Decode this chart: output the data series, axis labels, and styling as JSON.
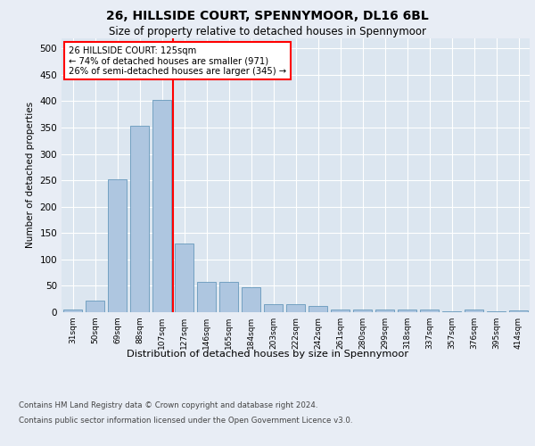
{
  "title1": "26, HILLSIDE COURT, SPENNYMOOR, DL16 6BL",
  "title2": "Size of property relative to detached houses in Spennymoor",
  "xlabel": "Distribution of detached houses by size in Spennymoor",
  "ylabel": "Number of detached properties",
  "categories": [
    "31sqm",
    "50sqm",
    "69sqm",
    "88sqm",
    "107sqm",
    "127sqm",
    "146sqm",
    "165sqm",
    "184sqm",
    "203sqm",
    "222sqm",
    "242sqm",
    "261sqm",
    "280sqm",
    "299sqm",
    "318sqm",
    "337sqm",
    "357sqm",
    "376sqm",
    "395sqm",
    "414sqm"
  ],
  "values": [
    5,
    22,
    252,
    353,
    402,
    130,
    57,
    57,
    48,
    15,
    15,
    12,
    5,
    5,
    5,
    5,
    5,
    2,
    5,
    2,
    3
  ],
  "bar_color": "#aec6e0",
  "bar_edge_color": "#6699bb",
  "vline_x": 4.5,
  "vline_color": "red",
  "annotation_text": "26 HILLSIDE COURT: 125sqm\n← 74% of detached houses are smaller (971)\n26% of semi-detached houses are larger (345) →",
  "annotation_box_color": "white",
  "annotation_box_edge": "red",
  "ylim": [
    0,
    520
  ],
  "yticks": [
    0,
    50,
    100,
    150,
    200,
    250,
    300,
    350,
    400,
    450,
    500
  ],
  "bg_color": "#e8edf5",
  "plot_bg_color": "#dce6f0",
  "footnote1": "Contains HM Land Registry data © Crown copyright and database right 2024.",
  "footnote2": "Contains public sector information licensed under the Open Government Licence v3.0."
}
